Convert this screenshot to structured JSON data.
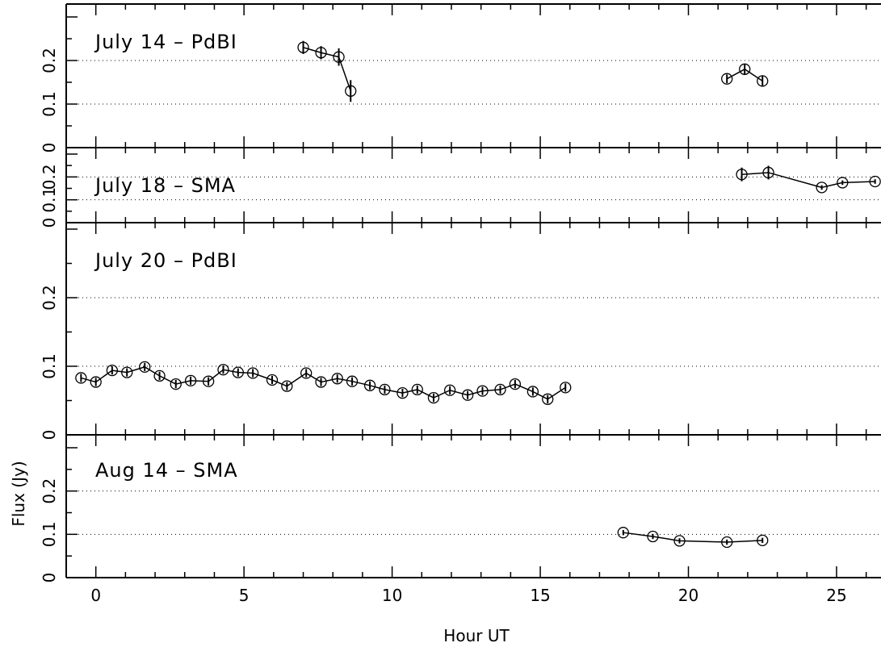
{
  "chart_data": {
    "type": "scatter",
    "xlabel": "Hour UT",
    "ylabel": "Flux (Jy)",
    "xlim": [
      -1.0,
      26.5
    ],
    "ylim": [
      0,
      0.3
    ],
    "x_ticks": [
      "0",
      "5",
      "10",
      "15",
      "20",
      "25"
    ],
    "y_ticks": [
      "0",
      "0.1",
      "0.2"
    ],
    "reference_lines_y": [
      0.1,
      0.2
    ],
    "panels": [
      {
        "label": "July 14 – PdBI",
        "series": [
          {
            "x": [
              7.0,
              7.6,
              8.2,
              8.6
            ],
            "y": [
              0.23,
              0.218,
              0.208,
              0.13
            ],
            "yerr": [
              0.015,
              0.015,
              0.02,
              0.025
            ]
          },
          {
            "x": [
              21.3,
              21.9,
              22.5
            ],
            "y": [
              0.158,
              0.18,
              0.153
            ],
            "yerr": [
              0.01,
              0.012,
              0.012
            ]
          }
        ]
      },
      {
        "label": "July 18 – SMA",
        "series": [
          {
            "x": [
              21.8,
              22.7,
              24.5,
              25.2,
              26.3
            ],
            "y": [
              0.211,
              0.219,
              0.154,
              0.175,
              0.18
            ],
            "yerr": [
              0.03,
              0.03,
              0.01,
              0.01,
              0.01
            ]
          }
        ]
      },
      {
        "label": "July 20 – PdBI",
        "series": [
          {
            "x": [
              -0.5,
              0.0,
              0.55,
              1.05,
              1.65,
              2.15,
              2.7,
              3.2,
              3.8,
              4.3,
              4.8,
              5.3,
              5.95,
              6.45,
              7.1,
              7.6,
              8.15,
              8.65,
              9.25,
              9.75,
              10.35,
              10.85,
              11.4,
              11.95,
              12.55,
              13.05,
              13.65,
              14.15,
              14.75,
              15.25,
              15.85
            ],
            "y": [
              0.083,
              0.077,
              0.094,
              0.091,
              0.099,
              0.086,
              0.074,
              0.079,
              0.078,
              0.095,
              0.091,
              0.09,
              0.08,
              0.071,
              0.09,
              0.077,
              0.082,
              0.078,
              0.072,
              0.066,
              0.061,
              0.066,
              0.054,
              0.065,
              0.058,
              0.064,
              0.066,
              0.074,
              0.063,
              0.052,
              0.069
            ],
            "yerr": [
              0.006,
              0.006,
              0.006,
              0.006,
              0.006,
              0.006,
              0.006,
              0.006,
              0.006,
              0.006,
              0.006,
              0.006,
              0.006,
              0.006,
              0.006,
              0.006,
              0.006,
              0.006,
              0.006,
              0.006,
              0.006,
              0.006,
              0.006,
              0.006,
              0.006,
              0.006,
              0.006,
              0.006,
              0.006,
              0.006,
              0.006
            ]
          }
        ]
      },
      {
        "label": "Aug 14 – SMA",
        "series": [
          {
            "x": [
              17.8,
              18.8,
              19.7,
              21.3,
              22.5
            ],
            "y": [
              0.104,
              0.095,
              0.085,
              0.082,
              0.086
            ],
            "yerr": [
              0.006,
              0.006,
              0.006,
              0.006,
              0.006
            ]
          }
        ]
      }
    ]
  }
}
